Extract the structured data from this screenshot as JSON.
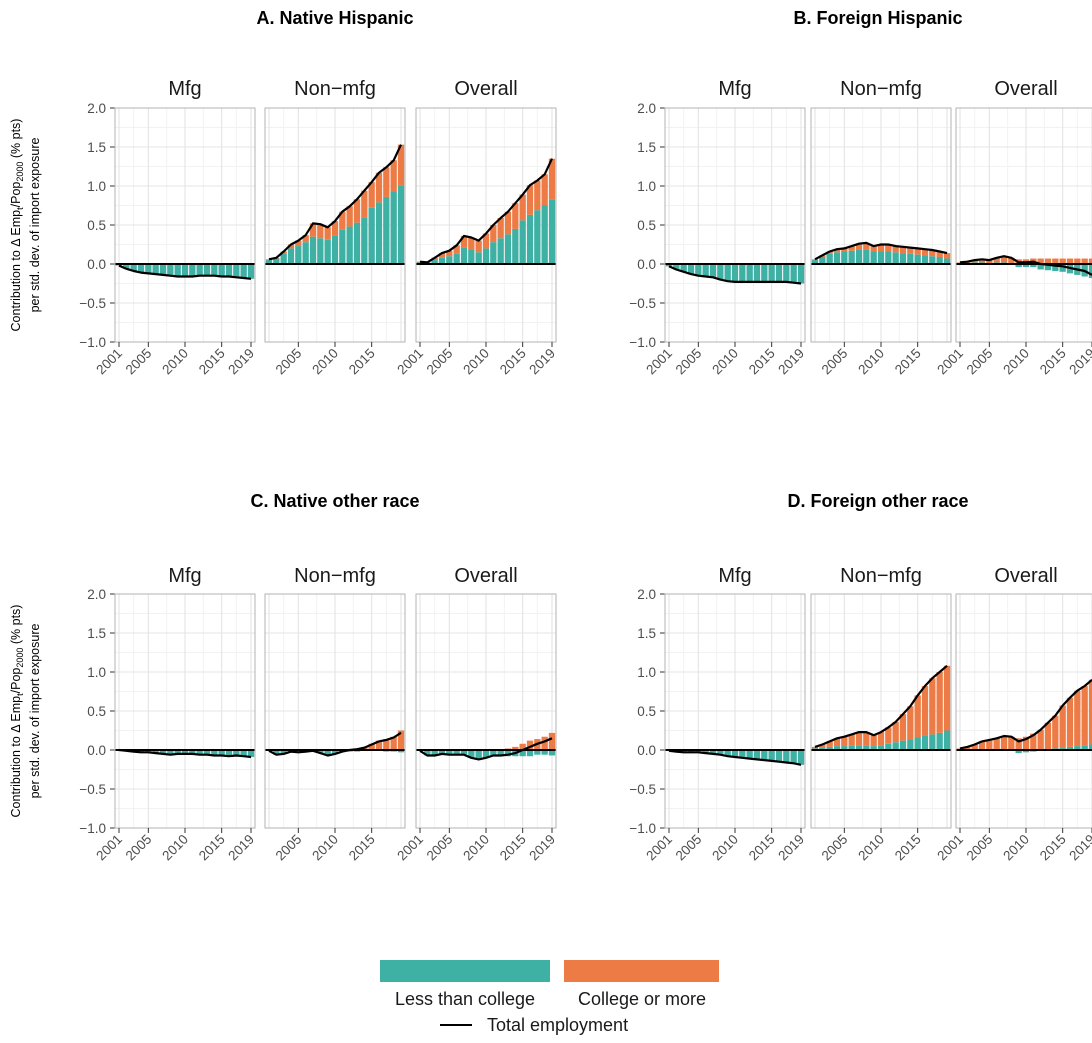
{
  "figure": {
    "ylabel_line1_prefix": "Contribution to Δ Emp",
    "ylabel_sub_t": "t",
    "ylabel_mid": "/Pop",
    "ylabel_sub_2000": "2000",
    "ylabel_line1_suffix": " (% pts)",
    "ylabel_line2": "per std. dev. of import exposure",
    "y_ticks": [
      "2.0",
      "1.5",
      "1.0",
      "0.5",
      "0.0",
      "−0.5",
      "−1.0"
    ],
    "x_ticks_first": [
      "2001",
      "2005",
      "2010",
      "2015",
      "2019"
    ],
    "x_ticks_other": [
      "2005",
      "2010",
      "2015"
    ],
    "x_ticks_last": [
      "2001",
      "2005",
      "2010",
      "2015",
      "2019"
    ]
  },
  "legend": {
    "less_label": "Less than college",
    "college_label": "College or more",
    "total_label": "Total employment",
    "less_color": "#3fb0a4",
    "college_color": "#ec7b45",
    "line_color": "#000000"
  },
  "chart_data": [
    {
      "type": "bar",
      "title": "A. Native Hispanic",
      "ylim": [
        -1.0,
        2.0
      ],
      "years": [
        2001,
        2002,
        2003,
        2004,
        2005,
        2006,
        2007,
        2008,
        2009,
        2010,
        2011,
        2012,
        2013,
        2014,
        2015,
        2016,
        2017,
        2018,
        2019
      ],
      "facets": [
        {
          "name": "Mfg",
          "less": [
            -0.02,
            -0.06,
            -0.09,
            -0.11,
            -0.12,
            -0.13,
            -0.14,
            -0.15,
            -0.16,
            -0.16,
            -0.16,
            -0.15,
            -0.15,
            -0.15,
            -0.16,
            -0.16,
            -0.17,
            -0.18,
            -0.19
          ],
          "college": [
            0,
            0,
            0,
            0,
            0,
            0,
            0,
            0,
            0,
            0,
            0,
            0,
            0,
            0,
            0,
            0,
            0,
            0,
            0
          ],
          "total": [
            -0.02,
            -0.06,
            -0.09,
            -0.11,
            -0.12,
            -0.13,
            -0.14,
            -0.15,
            -0.16,
            -0.16,
            -0.16,
            -0.15,
            -0.15,
            -0.15,
            -0.16,
            -0.16,
            -0.17,
            -0.18,
            -0.19
          ]
        },
        {
          "name": "Non−mfg",
          "less": [
            0.05,
            0.07,
            0.13,
            0.2,
            0.23,
            0.28,
            0.35,
            0.33,
            0.31,
            0.36,
            0.44,
            0.48,
            0.53,
            0.6,
            0.72,
            0.79,
            0.86,
            0.93,
            1.01
          ],
          "college": [
            0.01,
            0.01,
            0.03,
            0.05,
            0.07,
            0.09,
            0.17,
            0.18,
            0.16,
            0.19,
            0.23,
            0.26,
            0.3,
            0.34,
            0.33,
            0.38,
            0.38,
            0.4,
            0.52
          ],
          "total": [
            0.06,
            0.08,
            0.16,
            0.25,
            0.3,
            0.37,
            0.52,
            0.51,
            0.47,
            0.55,
            0.67,
            0.74,
            0.83,
            0.94,
            1.05,
            1.17,
            1.24,
            1.33,
            1.53
          ]
        },
        {
          "name": "Overall",
          "less": [
            0.02,
            0.02,
            0.05,
            0.08,
            0.1,
            0.13,
            0.21,
            0.18,
            0.15,
            0.2,
            0.28,
            0.33,
            0.38,
            0.45,
            0.56,
            0.63,
            0.69,
            0.75,
            0.83
          ],
          "college": [
            0.01,
            0.0,
            0.03,
            0.06,
            0.07,
            0.11,
            0.15,
            0.16,
            0.15,
            0.19,
            0.22,
            0.26,
            0.29,
            0.33,
            0.33,
            0.38,
            0.38,
            0.4,
            0.52
          ],
          "total": [
            0.03,
            0.02,
            0.08,
            0.14,
            0.17,
            0.24,
            0.36,
            0.34,
            0.3,
            0.39,
            0.5,
            0.59,
            0.67,
            0.78,
            0.89,
            1.01,
            1.07,
            1.15,
            1.35
          ]
        }
      ]
    },
    {
      "type": "bar",
      "title": "B. Foreign Hispanic",
      "ylim": [
        -1.0,
        2.0
      ],
      "years": [
        2001,
        2002,
        2003,
        2004,
        2005,
        2006,
        2007,
        2008,
        2009,
        2010,
        2011,
        2012,
        2013,
        2014,
        2015,
        2016,
        2017,
        2018,
        2019
      ],
      "facets": [
        {
          "name": "Mfg",
          "less": [
            -0.03,
            -0.07,
            -0.1,
            -0.13,
            -0.15,
            -0.16,
            -0.17,
            -0.2,
            -0.22,
            -0.23,
            -0.23,
            -0.23,
            -0.23,
            -0.23,
            -0.23,
            -0.23,
            -0.23,
            -0.24,
            -0.25
          ],
          "college": [
            0,
            0,
            0,
            0,
            0,
            0,
            0,
            0,
            0,
            0,
            0,
            0,
            0,
            0,
            0,
            0,
            0,
            0,
            0
          ],
          "total": [
            -0.03,
            -0.07,
            -0.1,
            -0.13,
            -0.15,
            -0.16,
            -0.17,
            -0.2,
            -0.22,
            -0.23,
            -0.23,
            -0.23,
            -0.23,
            -0.23,
            -0.23,
            -0.23,
            -0.23,
            -0.24,
            -0.25
          ]
        },
        {
          "name": "Non−mfg",
          "less": [
            0.05,
            0.09,
            0.13,
            0.15,
            0.16,
            0.17,
            0.18,
            0.18,
            0.16,
            0.16,
            0.16,
            0.15,
            0.14,
            0.13,
            0.12,
            0.11,
            0.1,
            0.09,
            0.07
          ],
          "college": [
            0.01,
            0.02,
            0.03,
            0.04,
            0.04,
            0.06,
            0.08,
            0.09,
            0.07,
            0.09,
            0.09,
            0.08,
            0.08,
            0.08,
            0.08,
            0.08,
            0.08,
            0.07,
            0.07
          ],
          "total": [
            0.06,
            0.11,
            0.16,
            0.19,
            0.2,
            0.23,
            0.26,
            0.27,
            0.23,
            0.25,
            0.25,
            0.23,
            0.22,
            0.21,
            0.2,
            0.19,
            0.18,
            0.16,
            0.14
          ]
        },
        {
          "name": "Overall",
          "less": [
            0.01,
            0.01,
            0.02,
            0.02,
            0.01,
            0.02,
            0.02,
            0.01,
            -0.04,
            -0.04,
            -0.04,
            -0.07,
            -0.08,
            -0.09,
            -0.1,
            -0.12,
            -0.14,
            -0.16,
            -0.18
          ],
          "college": [
            0.01,
            0.02,
            0.03,
            0.04,
            0.04,
            0.06,
            0.08,
            0.07,
            0.06,
            0.06,
            0.07,
            0.07,
            0.07,
            0.07,
            0.07,
            0.07,
            0.07,
            0.07,
            0.07
          ],
          "total": [
            0.02,
            0.03,
            0.05,
            0.06,
            0.05,
            0.08,
            0.1,
            0.08,
            0.02,
            0.02,
            0.03,
            0.0,
            -0.01,
            -0.02,
            -0.03,
            -0.05,
            -0.07,
            -0.09,
            -0.14
          ]
        }
      ]
    },
    {
      "type": "bar",
      "title": "C. Native other race",
      "ylim": [
        -1.0,
        2.0
      ],
      "years": [
        2001,
        2002,
        2003,
        2004,
        2005,
        2006,
        2007,
        2008,
        2009,
        2010,
        2011,
        2012,
        2013,
        2014,
        2015,
        2016,
        2017,
        2018,
        2019
      ],
      "facets": [
        {
          "name": "Mfg",
          "less": [
            0.0,
            -0.01,
            -0.02,
            -0.03,
            -0.03,
            -0.04,
            -0.05,
            -0.06,
            -0.05,
            -0.05,
            -0.05,
            -0.06,
            -0.06,
            -0.07,
            -0.07,
            -0.08,
            -0.07,
            -0.08,
            -0.09
          ],
          "college": [
            0,
            0,
            0,
            0,
            0,
            0,
            0,
            0,
            0,
            0,
            0,
            0,
            0,
            0,
            0,
            0,
            0,
            0,
            0
          ],
          "total": [
            0.0,
            -0.01,
            -0.02,
            -0.03,
            -0.03,
            -0.04,
            -0.05,
            -0.06,
            -0.05,
            -0.05,
            -0.05,
            -0.06,
            -0.06,
            -0.07,
            -0.07,
            -0.08,
            -0.07,
            -0.08,
            -0.09
          ]
        },
        {
          "name": "Non−mfg",
          "less": [
            -0.01,
            -0.06,
            -0.05,
            -0.02,
            -0.03,
            -0.02,
            -0.01,
            -0.04,
            -0.07,
            -0.05,
            -0.02,
            -0.02,
            -0.02,
            -0.01,
            -0.01,
            -0.01,
            -0.02,
            -0.02,
            -0.03
          ],
          "college": [
            0,
            0,
            0,
            0,
            0,
            0,
            0,
            0,
            0,
            0,
            0,
            0.01,
            0.02,
            0.04,
            0.08,
            0.12,
            0.14,
            0.17,
            0.25
          ],
          "total": [
            -0.01,
            -0.06,
            -0.05,
            -0.02,
            -0.03,
            -0.02,
            -0.01,
            -0.04,
            -0.07,
            -0.05,
            -0.02,
            0.0,
            0.01,
            0.03,
            0.07,
            0.11,
            0.13,
            0.16,
            0.22
          ]
        },
        {
          "name": "Overall",
          "less": [
            -0.01,
            -0.07,
            -0.07,
            -0.05,
            -0.06,
            -0.06,
            -0.06,
            -0.1,
            -0.12,
            -0.1,
            -0.07,
            -0.08,
            -0.08,
            -0.08,
            -0.08,
            -0.08,
            -0.06,
            -0.06,
            -0.07
          ],
          "college": [
            0,
            0,
            0,
            0,
            0,
            0,
            0,
            0,
            0,
            0,
            0,
            0.01,
            0.02,
            0.04,
            0.08,
            0.12,
            0.14,
            0.17,
            0.22
          ],
          "total": [
            -0.01,
            -0.07,
            -0.07,
            -0.05,
            -0.06,
            -0.06,
            -0.06,
            -0.1,
            -0.12,
            -0.1,
            -0.07,
            -0.07,
            -0.06,
            -0.04,
            0.0,
            0.04,
            0.08,
            0.11,
            0.15
          ]
        }
      ]
    },
    {
      "type": "bar",
      "title": "D. Foreign other race",
      "ylim": [
        -1.0,
        2.0
      ],
      "years": [
        2001,
        2002,
        2003,
        2004,
        2005,
        2006,
        2007,
        2008,
        2009,
        2010,
        2011,
        2012,
        2013,
        2014,
        2015,
        2016,
        2017,
        2018,
        2019
      ],
      "facets": [
        {
          "name": "Mfg",
          "less": [
            -0.01,
            -0.02,
            -0.03,
            -0.03,
            -0.03,
            -0.04,
            -0.05,
            -0.06,
            -0.08,
            -0.09,
            -0.1,
            -0.11,
            -0.12,
            -0.13,
            -0.14,
            -0.15,
            -0.16,
            -0.17,
            -0.19
          ],
          "college": [
            0,
            0,
            0,
            0,
            0,
            0,
            0,
            0,
            0,
            0,
            0,
            0,
            0,
            0,
            0,
            0,
            0,
            0,
            0
          ],
          "total": [
            -0.01,
            -0.02,
            -0.03,
            -0.03,
            -0.03,
            -0.04,
            -0.05,
            -0.06,
            -0.08,
            -0.09,
            -0.1,
            -0.11,
            -0.12,
            -0.13,
            -0.14,
            -0.15,
            -0.16,
            -0.17,
            -0.19
          ]
        },
        {
          "name": "Non−mfg",
          "less": [
            0.02,
            0.03,
            0.04,
            0.05,
            0.05,
            0.06,
            0.06,
            0.06,
            0.05,
            0.06,
            0.08,
            0.1,
            0.12,
            0.14,
            0.16,
            0.18,
            0.2,
            0.22,
            0.25
          ],
          "college": [
            0.02,
            0.04,
            0.07,
            0.1,
            0.12,
            0.14,
            0.17,
            0.17,
            0.14,
            0.17,
            0.21,
            0.26,
            0.34,
            0.42,
            0.54,
            0.64,
            0.72,
            0.78,
            0.83
          ],
          "total": [
            0.04,
            0.07,
            0.11,
            0.15,
            0.17,
            0.2,
            0.23,
            0.23,
            0.19,
            0.23,
            0.29,
            0.36,
            0.46,
            0.56,
            0.7,
            0.82,
            0.92,
            1.0,
            1.08
          ]
        },
        {
          "name": "Overall",
          "less": [
            0.0,
            0.0,
            0.0,
            0.01,
            0.01,
            0.01,
            0.01,
            0.0,
            -0.04,
            -0.03,
            -0.02,
            0.0,
            0.01,
            0.02,
            0.03,
            0.04,
            0.05,
            0.06,
            0.07
          ],
          "college": [
            0.02,
            0.04,
            0.07,
            0.1,
            0.12,
            0.14,
            0.17,
            0.17,
            0.15,
            0.17,
            0.21,
            0.26,
            0.34,
            0.42,
            0.54,
            0.63,
            0.71,
            0.76,
            0.83
          ],
          "total": [
            0.02,
            0.04,
            0.07,
            0.11,
            0.13,
            0.15,
            0.18,
            0.17,
            0.11,
            0.14,
            0.19,
            0.26,
            0.35,
            0.44,
            0.57,
            0.67,
            0.76,
            0.82,
            0.9
          ]
        }
      ]
    }
  ]
}
